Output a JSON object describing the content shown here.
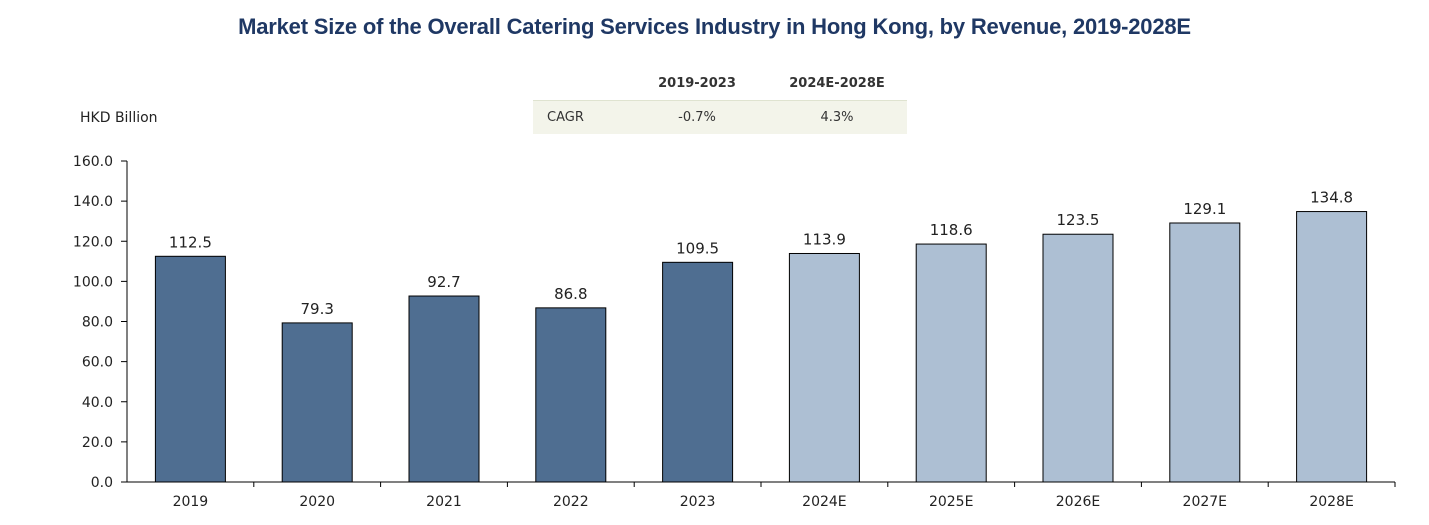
{
  "title": "Market Size of the Overall Catering Services Industry in Hong Kong, by Revenue, 2019-2028E",
  "cagr_table": {
    "headers": [
      "",
      "2019-2023",
      "2024E-2028E"
    ],
    "row_label": "CAGR",
    "values": [
      "-0.7%",
      "4.3%"
    ]
  },
  "chart_data": {
    "type": "bar",
    "title": "Market Size of the Overall Catering Services Industry in Hong Kong, by Revenue, 2019-2028E",
    "ylabel": "HKD Billion",
    "xlabel": "",
    "categories": [
      "2019",
      "2020",
      "2021",
      "2022",
      "2023",
      "2024E",
      "2025E",
      "2026E",
      "2027E",
      "2028E"
    ],
    "values": [
      112.5,
      79.3,
      92.7,
      86.8,
      109.5,
      113.9,
      118.6,
      123.5,
      129.1,
      134.8
    ],
    "data_labels": [
      "112.5",
      "79.3",
      "92.7",
      "86.8",
      "109.5",
      "113.9",
      "118.6",
      "123.5",
      "129.1",
      "134.8"
    ],
    "ylim": [
      0,
      160
    ],
    "yticks": [
      "0.0",
      "20.0",
      "40.0",
      "60.0",
      "80.0",
      "100.0",
      "120.0",
      "140.0",
      "160.0"
    ],
    "grid": false,
    "legend": "none",
    "colors": {
      "actual": "#4f6e91",
      "forecast": "#adbfd3",
      "outline": "#000000"
    }
  }
}
